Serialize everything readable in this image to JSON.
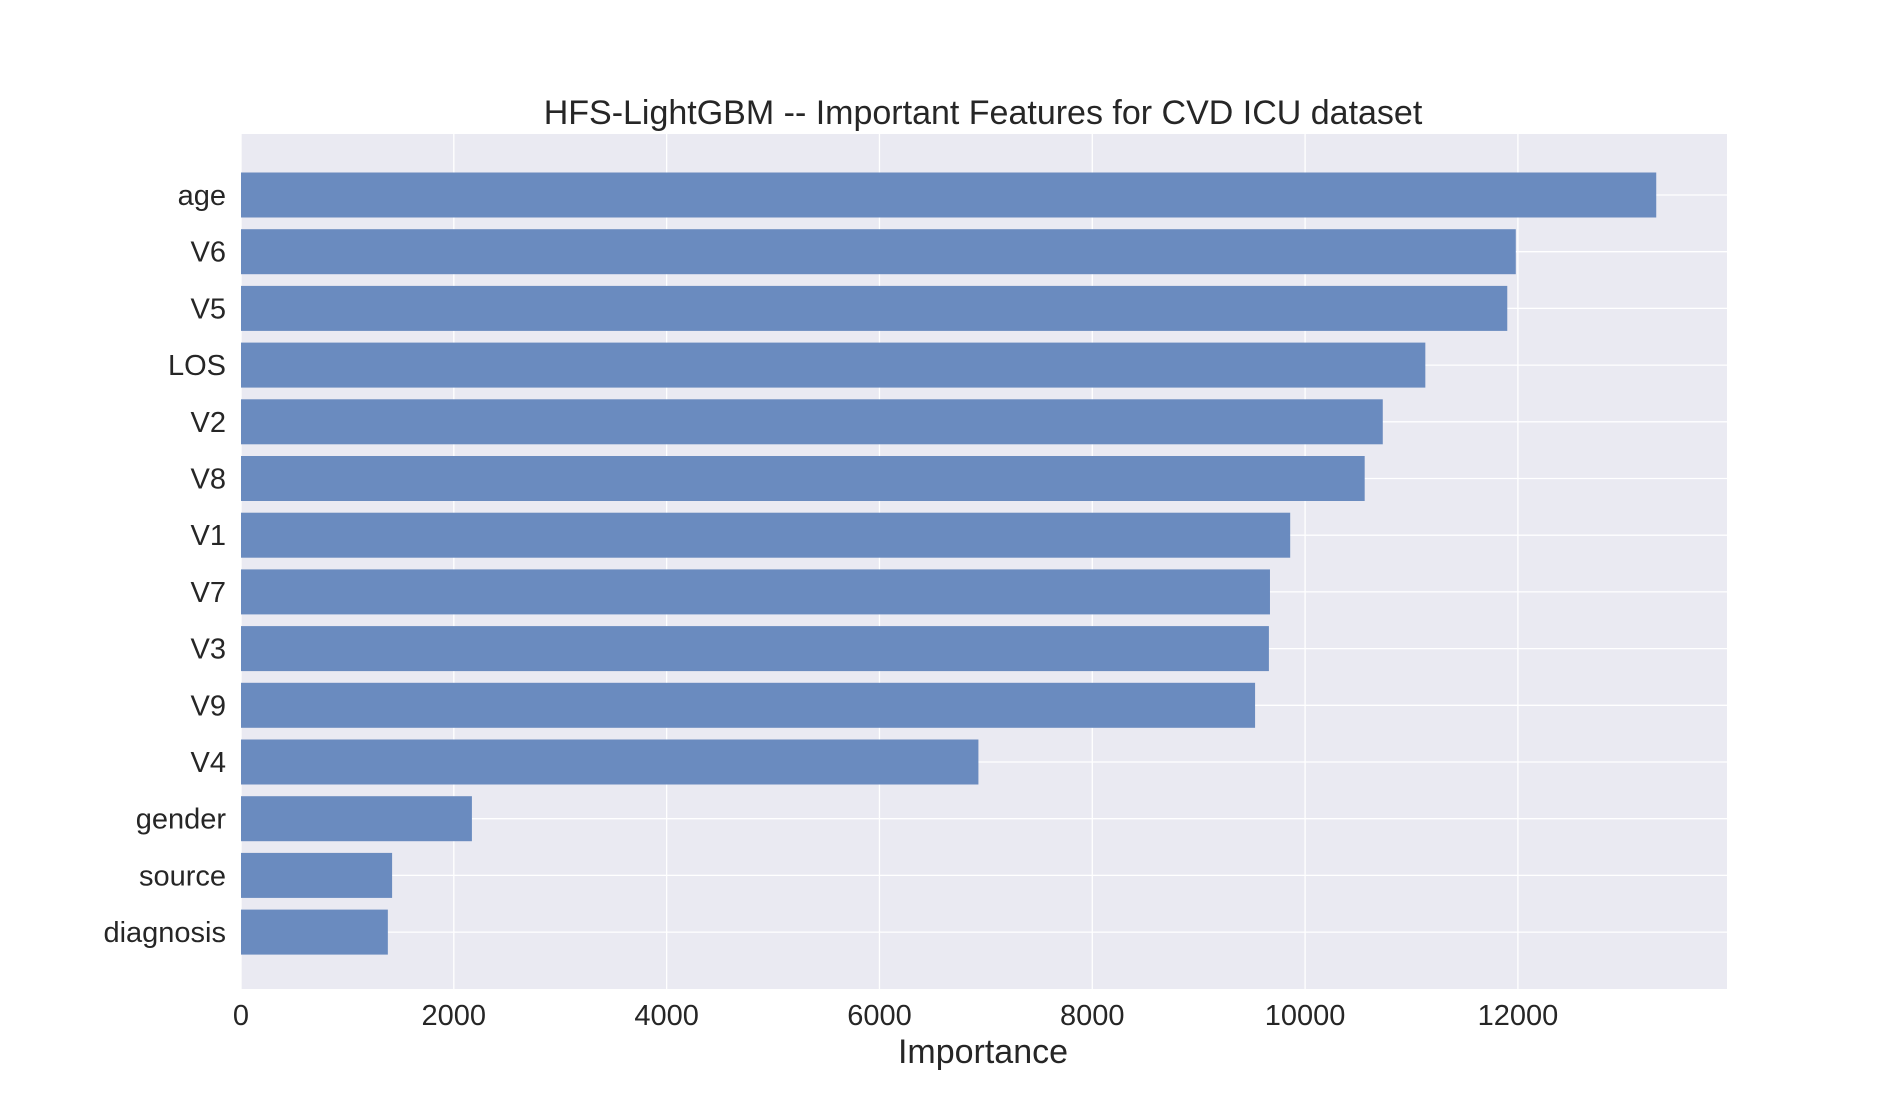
{
  "chart_data": {
    "type": "bar",
    "orientation": "horizontal",
    "title": "HFS-LightGBM -- Important Features for CVD ICU dataset",
    "xlabel": "Importance",
    "ylabel": "",
    "categories": [
      "age",
      "V6",
      "V5",
      "LOS",
      "V2",
      "V8",
      "V1",
      "V7",
      "V3",
      "V9",
      "V4",
      "gender",
      "source",
      "diagnosis"
    ],
    "values": [
      13300,
      11980,
      11900,
      11130,
      10730,
      10560,
      9860,
      9670,
      9660,
      9530,
      6930,
      2170,
      1420,
      1380
    ],
    "xlim": [
      0,
      13965
    ],
    "xticks": [
      "0",
      "2000",
      "4000",
      "6000",
      "8000",
      "10000",
      "12000"
    ],
    "grid": true,
    "colors": {
      "bar": "#6a8bbf",
      "plot_background": "#eaeaf2",
      "grid": "#ffffff",
      "text": "#262626"
    }
  }
}
